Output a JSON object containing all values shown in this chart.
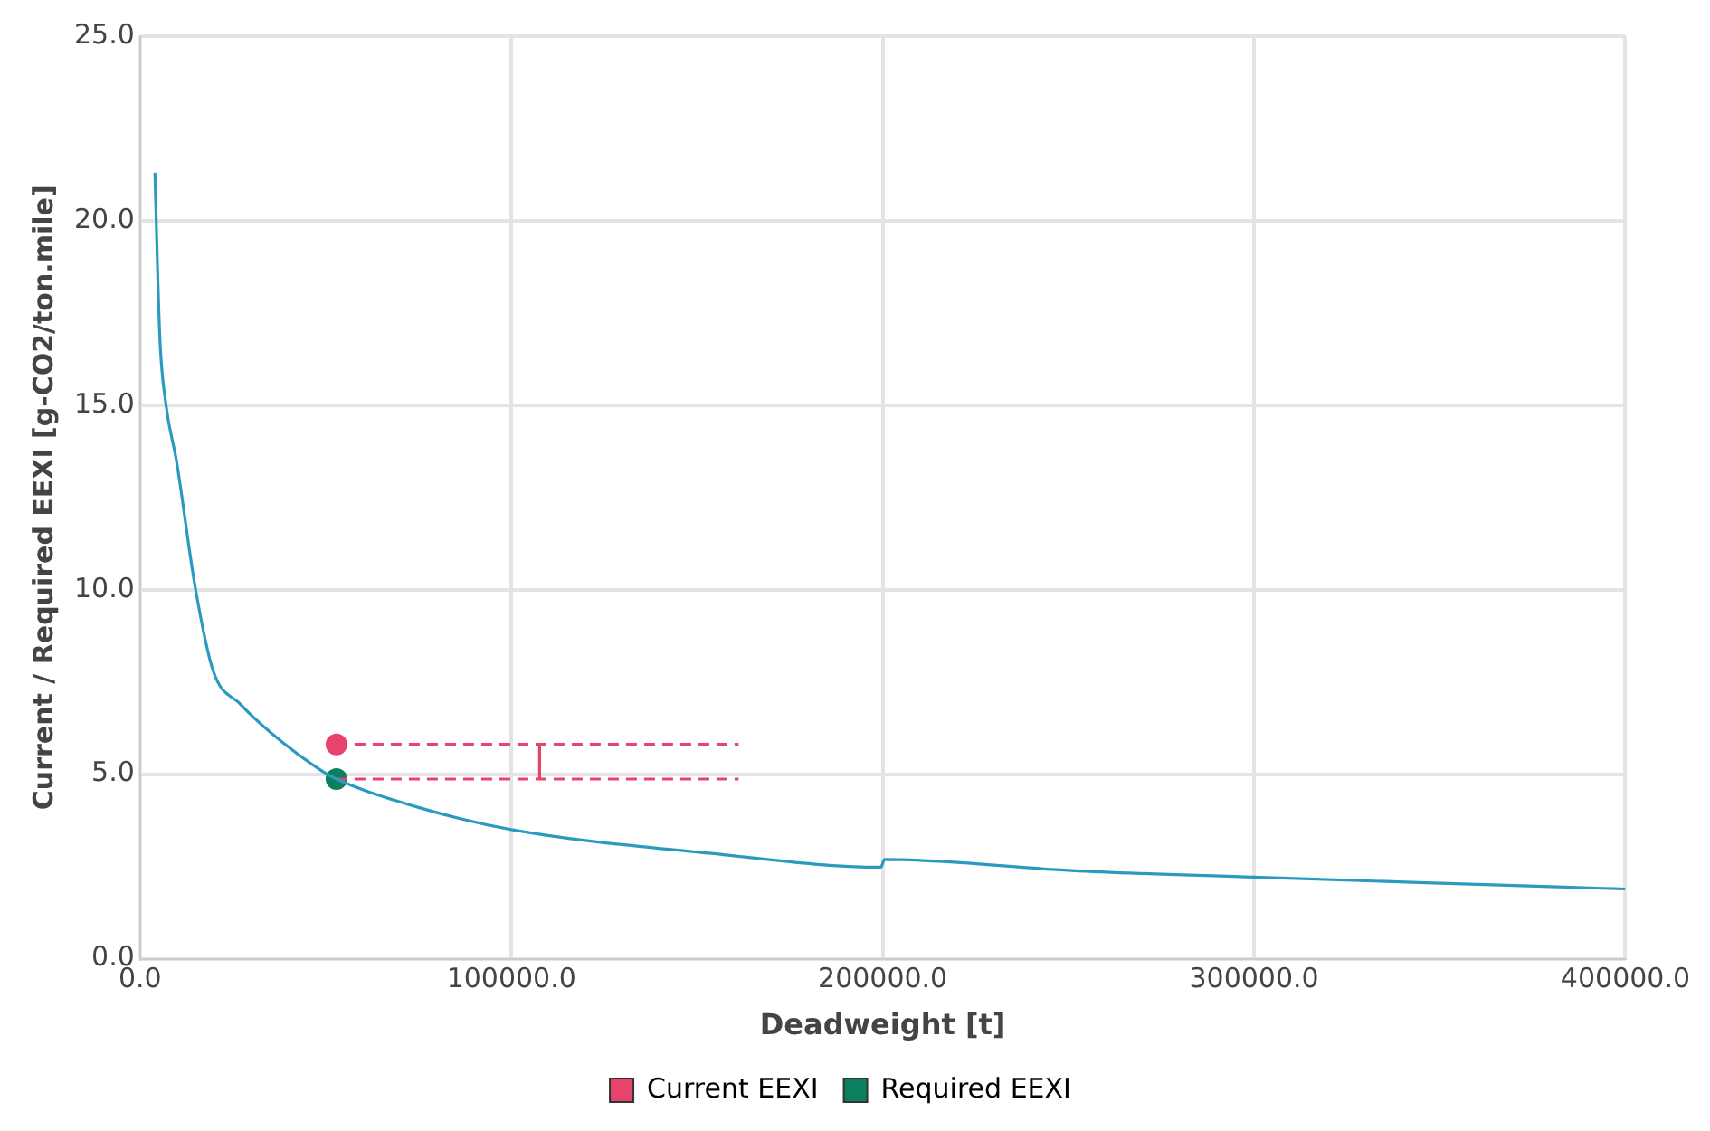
{
  "chart_data": {
    "type": "line",
    "xlabel": "Deadweight [t]",
    "ylabel": "Current / Required EEXI [g-CO2/ton.mile]",
    "xlim": [
      0,
      400000
    ],
    "xticks": [
      {
        "value": 0,
        "label": "0.0"
      },
      {
        "value": 100000,
        "label": "100000.0"
      },
      {
        "value": 200000,
        "label": "200000.0"
      },
      {
        "value": 300000,
        "label": "300000.0"
      },
      {
        "value": 400000,
        "label": "400000.0"
      }
    ],
    "ylim": [
      0,
      25
    ],
    "yticks": [
      {
        "value": 0,
        "label": "0.0"
      },
      {
        "value": 5,
        "label": "5.0"
      },
      {
        "value": 10,
        "label": "10.0"
      },
      {
        "value": 15,
        "label": "15.0"
      },
      {
        "value": 20,
        "label": "20.0"
      },
      {
        "value": 25,
        "label": "25.0"
      }
    ],
    "grid": true,
    "legend": "bottom",
    "series": [
      {
        "color": "#2a9bbf",
        "marker": "none",
        "line_style": "solid",
        "x": [
          4000,
          5300,
          7000,
          9800,
          14800,
          19700,
          27000,
          35500,
          48800,
          52900,
          75000,
          100000,
          153200,
          199500,
          200500,
          252700,
          300000,
          352200,
          400000
        ],
        "values": [
          21.3,
          16.9,
          15.0,
          13.5,
          10.1,
          7.8,
          6.9,
          6.1,
          5.1,
          4.87,
          4.1,
          3.5,
          2.86,
          2.48,
          2.69,
          2.38,
          2.21,
          2.04,
          1.89
        ]
      },
      {
        "color": "#e8436a",
        "marker": "none",
        "line_style": "dashed",
        "x": [
          52900,
          161200
        ],
        "values": [
          5.81,
          5.81
        ]
      },
      {
        "color": "#e8436a",
        "marker": "none",
        "line_style": "dashed",
        "x": [
          52900,
          161200
        ],
        "values": [
          4.87,
          4.87
        ]
      },
      {
        "color": "#e8436a",
        "marker": "none",
        "line_style": "solid",
        "x": [
          107600,
          107600
        ],
        "values": [
          4.87,
          5.81
        ]
      },
      {
        "type": "scatter",
        "name": "Current EEXI",
        "color": "#e8436a",
        "marker": "circle",
        "x": [
          52900
        ],
        "values": [
          5.81
        ]
      },
      {
        "type": "scatter",
        "name": "Required EEXI",
        "color": "#0a8060",
        "marker": "circle",
        "x": [
          52900
        ],
        "values": [
          4.87
        ]
      }
    ]
  }
}
